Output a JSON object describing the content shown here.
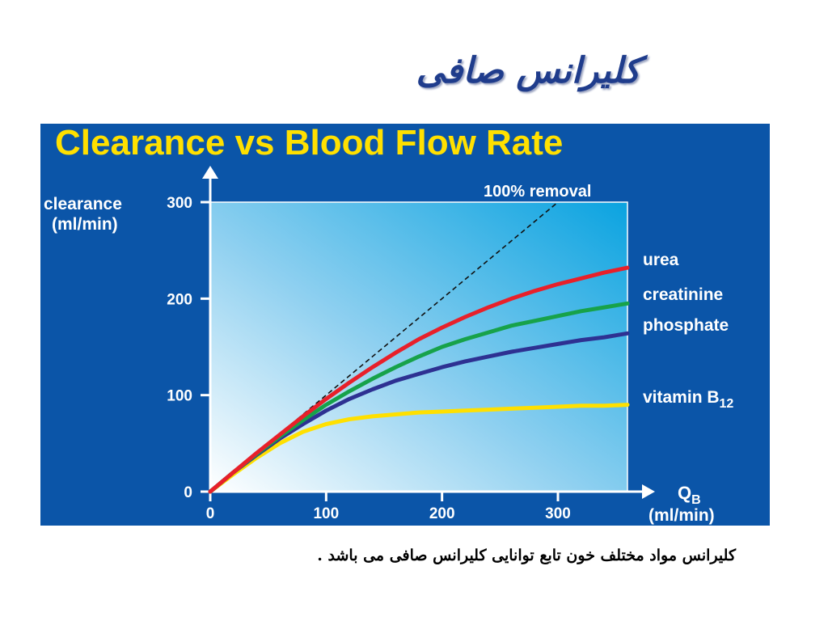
{
  "slide": {
    "title": "کلیرانس صافی",
    "caption": "کلیرانس مواد مختلف خون تابع توانایی کلیرانس صافی می باشد ."
  },
  "colors": {
    "panel": "#0b55a8",
    "title_text": "#ffe000",
    "axis_text": "#ffffff",
    "urea": "#e8202a",
    "creatinine": "#17a24a",
    "phosphate": "#2e3192",
    "vitamin_b12": "#ffe000",
    "removal_line": "#111111"
  },
  "chart_data": {
    "type": "line",
    "title": "Clearance vs Blood Flow Rate",
    "ylabel_line1": "clearance",
    "ylabel_line2": "(ml/min)",
    "xlabel_main": "Q",
    "xlabel_sub": "B",
    "xlabel_unit": "(ml/min)",
    "xlim": [
      0,
      360
    ],
    "ylim": [
      0,
      300
    ],
    "xticks": [
      0,
      100,
      200,
      300
    ],
    "yticks": [
      0,
      100,
      200,
      300
    ],
    "reference_line": {
      "name": "100% removal",
      "x": [
        0,
        300
      ],
      "y": [
        0,
        300
      ]
    },
    "series": [
      {
        "name": "urea",
        "name_sub": "",
        "x": [
          0,
          20,
          40,
          60,
          80,
          100,
          120,
          140,
          160,
          180,
          200,
          220,
          240,
          260,
          280,
          300,
          320,
          340,
          360
        ],
        "y": [
          0,
          20,
          40,
          59,
          78,
          96,
          113,
          129,
          144,
          158,
          170,
          181,
          191,
          200,
          208,
          215,
          221,
          227,
          232
        ]
      },
      {
        "name": "creatinine",
        "name_sub": "",
        "x": [
          0,
          20,
          40,
          60,
          80,
          100,
          120,
          140,
          160,
          180,
          200,
          220,
          240,
          260,
          280,
          300,
          320,
          340,
          360
        ],
        "y": [
          0,
          20,
          39,
          57,
          74,
          90,
          104,
          117,
          129,
          140,
          150,
          158,
          165,
          172,
          177,
          182,
          187,
          191,
          195
        ]
      },
      {
        "name": "phosphate",
        "name_sub": "",
        "x": [
          0,
          20,
          40,
          60,
          80,
          100,
          120,
          140,
          160,
          180,
          200,
          220,
          240,
          260,
          280,
          300,
          320,
          340,
          360
        ],
        "y": [
          0,
          20,
          38,
          55,
          70,
          84,
          96,
          106,
          115,
          122,
          129,
          135,
          140,
          145,
          149,
          153,
          157,
          160,
          164
        ]
      },
      {
        "name": "vitamin B",
        "name_sub": "12",
        "x": [
          0,
          20,
          40,
          60,
          80,
          100,
          120,
          140,
          160,
          180,
          200,
          220,
          240,
          260,
          280,
          300,
          320,
          340,
          360
        ],
        "y": [
          0,
          18,
          35,
          50,
          62,
          70,
          75,
          78,
          80,
          82,
          83,
          84,
          85,
          86,
          87,
          88,
          89,
          89,
          90
        ]
      }
    ]
  }
}
